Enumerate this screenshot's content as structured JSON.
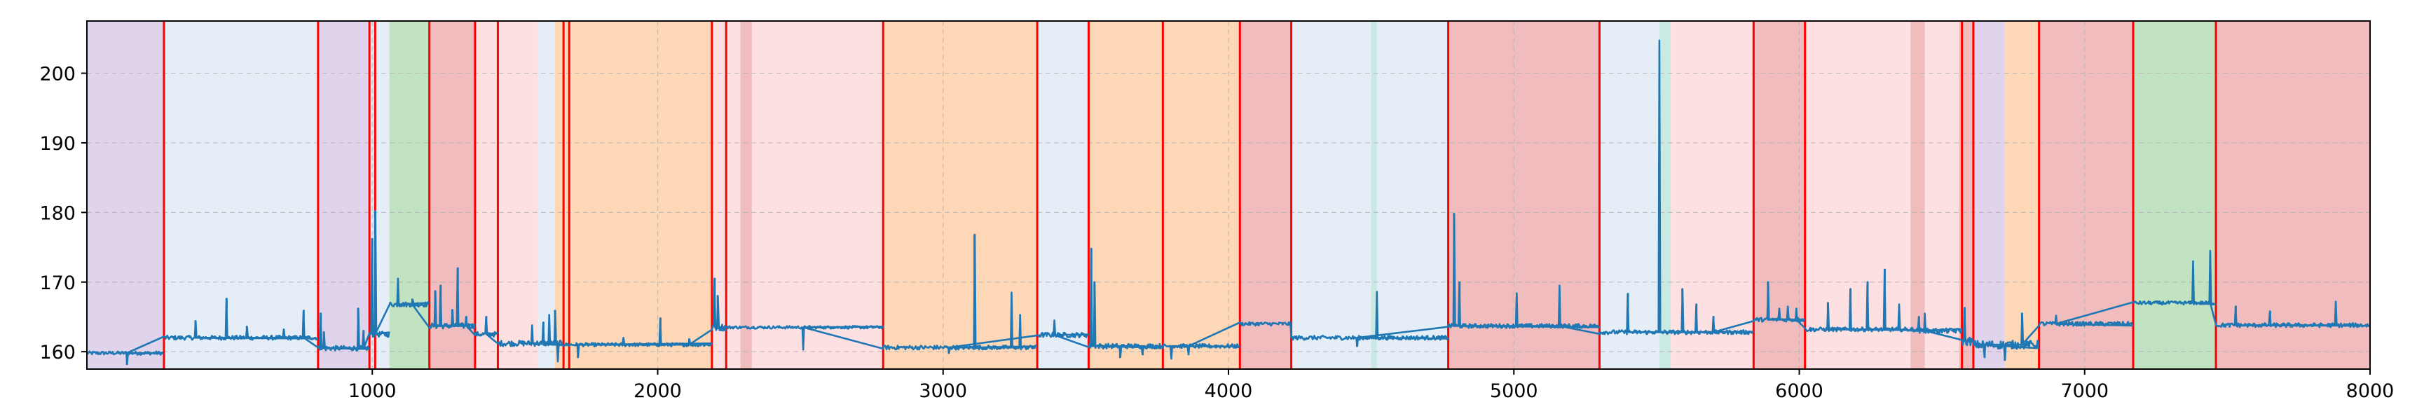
{
  "chart_data": {
    "type": "line",
    "title": "",
    "xlabel": "",
    "ylabel": "",
    "xlim": [
      0,
      8000
    ],
    "ylim": [
      157.5,
      207.5
    ],
    "x_ticks": [
      1000,
      2000,
      3000,
      4000,
      5000,
      6000,
      7000,
      8000
    ],
    "y_ticks": [
      160,
      170,
      180,
      190,
      200
    ],
    "x_tick_labels": [
      "1000",
      "2000",
      "3000",
      "4000",
      "5000",
      "6000",
      "7000",
      "8000"
    ],
    "y_tick_labels": [
      "160",
      "170",
      "180",
      "190",
      "200"
    ],
    "grid": true,
    "legend": "none",
    "line_color": "#1f77b4",
    "change_line_color": "#ff0000",
    "region_colors": {
      "purple": "#e0d3ec",
      "blue": "#e5edf7",
      "green": "#c1e3c1",
      "red": "#f0bcbd",
      "pink": "#fde0e1",
      "orange": "#fdd7b6",
      "teal": "#c9e9e3"
    },
    "regions": [
      {
        "start": 0,
        "end": 270,
        "color": "purple"
      },
      {
        "start": 270,
        "end": 810,
        "color": "blue"
      },
      {
        "start": 810,
        "end": 990,
        "color": "purple"
      },
      {
        "start": 990,
        "end": 1060,
        "color": "blue"
      },
      {
        "start": 1060,
        "end": 1200,
        "color": "green"
      },
      {
        "start": 1200,
        "end": 1360,
        "color": "red"
      },
      {
        "start": 1360,
        "end": 1580,
        "color": "pink"
      },
      {
        "start": 1580,
        "end": 1640,
        "color": "blue"
      },
      {
        "start": 1640,
        "end": 1700,
        "color": "orange"
      },
      {
        "start": 1700,
        "end": 2190,
        "color": "orange"
      },
      {
        "start": 2190,
        "end": 2240,
        "color": "pink"
      },
      {
        "start": 2240,
        "end": 2290,
        "color": "pink"
      },
      {
        "start": 2290,
        "end": 2330,
        "color": "red"
      },
      {
        "start": 2330,
        "end": 2790,
        "color": "pink"
      },
      {
        "start": 2790,
        "end": 3330,
        "color": "orange"
      },
      {
        "start": 3330,
        "end": 3510,
        "color": "blue"
      },
      {
        "start": 3510,
        "end": 4040,
        "color": "orange"
      },
      {
        "start": 4040,
        "end": 4220,
        "color": "red"
      },
      {
        "start": 4220,
        "end": 4500,
        "color": "blue"
      },
      {
        "start": 4500,
        "end": 4520,
        "color": "teal"
      },
      {
        "start": 4520,
        "end": 4770,
        "color": "blue"
      },
      {
        "start": 4770,
        "end": 5300,
        "color": "red"
      },
      {
        "start": 5300,
        "end": 5510,
        "color": "blue"
      },
      {
        "start": 5510,
        "end": 5550,
        "color": "teal"
      },
      {
        "start": 5550,
        "end": 5840,
        "color": "pink"
      },
      {
        "start": 5840,
        "end": 6020,
        "color": "red"
      },
      {
        "start": 6020,
        "end": 6390,
        "color": "pink"
      },
      {
        "start": 6390,
        "end": 6440,
        "color": "red"
      },
      {
        "start": 6440,
        "end": 6560,
        "color": "pink"
      },
      {
        "start": 6560,
        "end": 6610,
        "color": "red"
      },
      {
        "start": 6610,
        "end": 6720,
        "color": "purple"
      },
      {
        "start": 6720,
        "end": 6840,
        "color": "orange"
      },
      {
        "start": 6840,
        "end": 7170,
        "color": "red"
      },
      {
        "start": 7170,
        "end": 7460,
        "color": "green"
      },
      {
        "start": 7460,
        "end": 8000,
        "color": "red"
      }
    ],
    "change_points": [
      270,
      810,
      990,
      1010,
      1200,
      1360,
      1440,
      1670,
      1690,
      2190,
      2240,
      2790,
      3330,
      3510,
      3770,
      4040,
      4220,
      4770,
      5300,
      5840,
      6020,
      6570,
      6610,
      6840,
      7170,
      7460
    ],
    "series": [
      {
        "segments": [
          {
            "start": 0,
            "end": 270,
            "level": 159.8,
            "noise": 0.25,
            "spikes": [
              [
                140,
                158.2
              ]
            ]
          },
          {
            "start": 270,
            "end": 810,
            "level": 162.0,
            "noise": 0.3,
            "spikes": [
              [
                380,
                164.4
              ],
              [
                490,
                167.6
              ],
              [
                560,
                163.6
              ],
              [
                690,
                163.2
              ],
              [
                760,
                165.9
              ]
            ]
          },
          {
            "start": 810,
            "end": 990,
            "level": 160.5,
            "noise": 0.35,
            "spikes": [
              [
                820,
                165.5
              ],
              [
                830,
                162.8
              ],
              [
                950,
                166.2
              ],
              [
                970,
                163.0
              ]
            ]
          },
          {
            "start": 990,
            "end": 1060,
            "level": 162.5,
            "noise": 0.4,
            "spikes": [
              [
                1000,
                176.2
              ],
              [
                1010,
                180.2
              ]
            ]
          },
          {
            "start": 1060,
            "end": 1200,
            "level": 166.8,
            "noise": 0.35,
            "spikes": [
              [
                1090,
                170.5
              ],
              [
                1140,
                167.5
              ]
            ]
          },
          {
            "start": 1200,
            "end": 1360,
            "level": 163.7,
            "noise": 0.4,
            "spikes": [
              [
                1220,
                168.7
              ],
              [
                1240,
                169.5
              ],
              [
                1300,
                172.0
              ],
              [
                1280,
                166.0
              ],
              [
                1330,
                165.0
              ]
            ]
          },
          {
            "start": 1360,
            "end": 1440,
            "level": 162.5,
            "noise": 0.35,
            "spikes": [
              [
                1400,
                165.0
              ]
            ]
          },
          {
            "start": 1440,
            "end": 1670,
            "level": 161.2,
            "noise": 0.4,
            "spikes": [
              [
                1560,
                163.8
              ],
              [
                1600,
                164.2
              ],
              [
                1620,
                165.3
              ],
              [
                1640,
                165.9
              ],
              [
                1650,
                158.6
              ]
            ]
          },
          {
            "start": 1670,
            "end": 2190,
            "level": 161.0,
            "noise": 0.25,
            "spikes": [
              [
                1720,
                159.2
              ],
              [
                1880,
                162.0
              ],
              [
                2010,
                164.8
              ],
              [
                2110,
                161.8
              ]
            ]
          },
          {
            "start": 2190,
            "end": 2240,
            "level": 163.5,
            "noise": 0.5,
            "spikes": [
              [
                2200,
                170.5
              ],
              [
                2210,
                168.0
              ]
            ]
          },
          {
            "start": 2240,
            "end": 2790,
            "level": 163.5,
            "noise": 0.2,
            "spikes": [
              [
                2510,
                160.3
              ]
            ]
          },
          {
            "start": 2790,
            "end": 3330,
            "level": 160.6,
            "noise": 0.3,
            "spikes": [
              [
                3110,
                176.8
              ],
              [
                3240,
                168.5
              ],
              [
                3270,
                165.3
              ],
              [
                3020,
                159.8
              ]
            ]
          },
          {
            "start": 3330,
            "end": 3510,
            "level": 162.4,
            "noise": 0.35,
            "spikes": [
              [
                3390,
                164.5
              ]
            ]
          },
          {
            "start": 3510,
            "end": 3770,
            "level": 160.8,
            "noise": 0.35,
            "spikes": [
              [
                3520,
                174.8
              ],
              [
                3530,
                170.0
              ],
              [
                3620,
                159.2
              ],
              [
                3700,
                159.6
              ]
            ]
          },
          {
            "start": 3770,
            "end": 4040,
            "level": 160.8,
            "noise": 0.3,
            "spikes": [
              [
                3800,
                159.0
              ],
              [
                3860,
                159.6
              ]
            ]
          },
          {
            "start": 4040,
            "end": 4220,
            "level": 164.0,
            "noise": 0.25,
            "spikes": []
          },
          {
            "start": 4220,
            "end": 4770,
            "level": 162.0,
            "noise": 0.3,
            "spikes": [
              [
                4520,
                168.6
              ],
              [
                4450,
                160.8
              ]
            ]
          },
          {
            "start": 4770,
            "end": 5300,
            "level": 163.7,
            "noise": 0.3,
            "spikes": [
              [
                4790,
                179.8
              ],
              [
                4810,
                170.0
              ],
              [
                5010,
                168.4
              ],
              [
                5160,
                169.5
              ]
            ]
          },
          {
            "start": 5300,
            "end": 5840,
            "level": 162.8,
            "noise": 0.3,
            "spikes": [
              [
                5400,
                168.3
              ],
              [
                5510,
                204.7
              ],
              [
                5590,
                169.0
              ],
              [
                5640,
                166.8
              ],
              [
                5700,
                165.0
              ]
            ]
          },
          {
            "start": 5840,
            "end": 6020,
            "level": 164.6,
            "noise": 0.3,
            "spikes": [
              [
                5890,
                170.0
              ],
              [
                5930,
                166.2
              ],
              [
                5960,
                166.5
              ],
              [
                5990,
                166.2
              ]
            ]
          },
          {
            "start": 6020,
            "end": 6410,
            "level": 163.2,
            "noise": 0.3,
            "spikes": [
              [
                6100,
                167.0
              ],
              [
                6180,
                169.0
              ],
              [
                6240,
                170.0
              ],
              [
                6300,
                171.8
              ],
              [
                6350,
                166.8
              ]
            ]
          },
          {
            "start": 6410,
            "end": 6570,
            "level": 163.0,
            "noise": 0.35,
            "spikes": [
              [
                6420,
                165.0
              ],
              [
                6440,
                165.5
              ]
            ]
          },
          {
            "start": 6570,
            "end": 6610,
            "level": 161.5,
            "noise": 0.6,
            "spikes": [
              [
                6580,
                166.3
              ]
            ]
          },
          {
            "start": 6610,
            "end": 6840,
            "level": 161.0,
            "noise": 0.6,
            "spikes": [
              [
                6650,
                159.2
              ],
              [
                6720,
                158.8
              ],
              [
                6780,
                165.5
              ]
            ]
          },
          {
            "start": 6840,
            "end": 7170,
            "level": 164.0,
            "noise": 0.3,
            "spikes": [
              [
                6900,
                165.2
              ]
            ]
          },
          {
            "start": 7170,
            "end": 7460,
            "level": 167.0,
            "noise": 0.25,
            "spikes": [
              [
                7380,
                173.0
              ],
              [
                7440,
                174.5
              ]
            ]
          },
          {
            "start": 7460,
            "end": 8000,
            "level": 163.8,
            "noise": 0.3,
            "spikes": [
              [
                7530,
                166.5
              ],
              [
                7650,
                165.8
              ],
              [
                7880,
                167.2
              ]
            ]
          }
        ]
      }
    ]
  }
}
